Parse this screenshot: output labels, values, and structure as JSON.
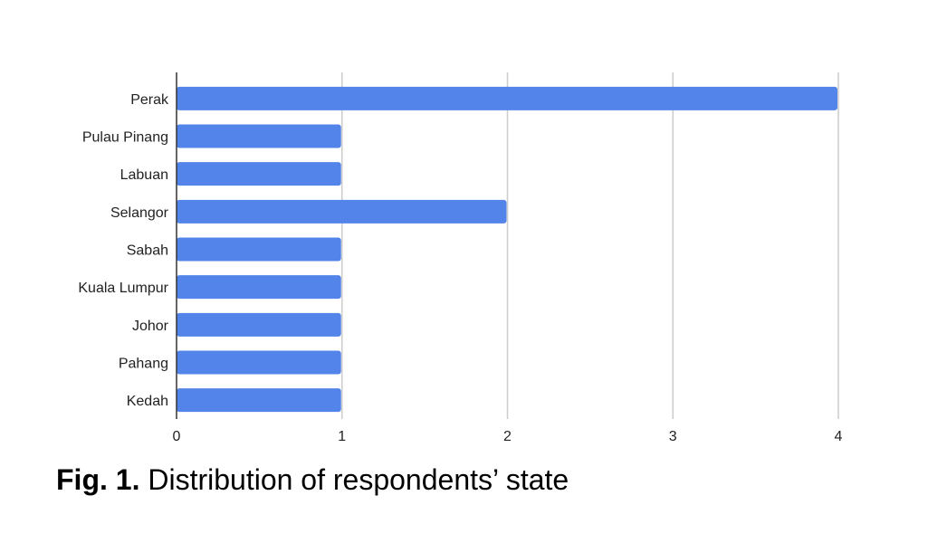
{
  "chart_data": {
    "type": "bar",
    "orientation": "horizontal",
    "categories": [
      "Perak",
      "Pulau Pinang",
      "Labuan",
      "Selangor",
      "Sabah",
      "Kuala Lumpur",
      "Johor",
      "Pahang",
      "Kedah"
    ],
    "values": [
      4,
      1,
      1,
      2,
      1,
      1,
      1,
      1,
      1
    ],
    "xlim": [
      0,
      4
    ],
    "xticks": [
      "0",
      "1",
      "2",
      "3",
      "4"
    ],
    "title": "",
    "xlabel": "",
    "ylabel": "",
    "grid": "vertical",
    "legend": "none",
    "bar_color": "#5384EA",
    "grid_color": "#cccccc",
    "axis_color": "#333333"
  },
  "caption": {
    "label": "Fig. 1.",
    "text": " Distribution of respondents’ state"
  }
}
